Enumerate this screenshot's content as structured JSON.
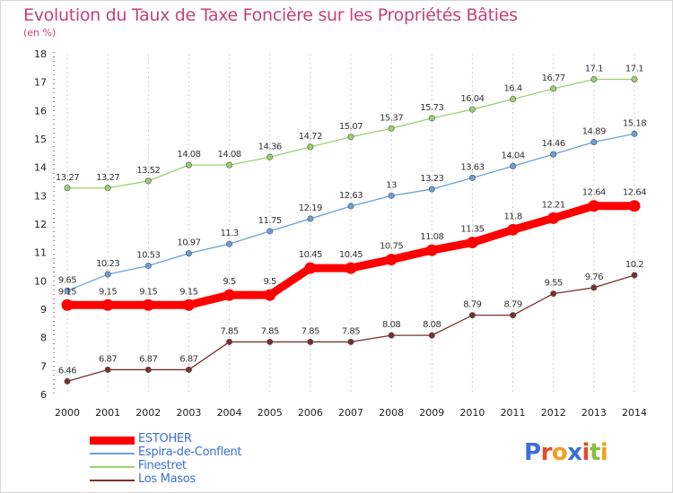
{
  "title": "Evolution du Taux de Taxe Foncière sur les Propriétés Bâties",
  "subtitle": "(en %)",
  "logo": "Proxiti",
  "colors": {
    "title": "#c4407a",
    "legend_text": "#3b6fd6",
    "grid": "#d0d0d0",
    "logo": [
      "#3b6fd6",
      "#e04b2a",
      "#f0a020",
      "#3b6fd6",
      "#e04b2a",
      "#88c040",
      "#f0a020"
    ]
  },
  "chart_data": {
    "type": "line",
    "title": "Evolution du Taux de Taxe Foncière sur les Propriétés Bâties",
    "ylabel": "(en %)",
    "xlabel": "",
    "x": [
      2000,
      2001,
      2002,
      2003,
      2004,
      2005,
      2006,
      2007,
      2008,
      2009,
      2010,
      2011,
      2012,
      2013,
      2014
    ],
    "ylim": [
      6,
      18
    ],
    "yticks": [
      6,
      7,
      8,
      9,
      10,
      11,
      12,
      13,
      14,
      15,
      16,
      17,
      18
    ],
    "grid": "dashed-vertical",
    "legend_position": "bottom-left",
    "series": [
      {
        "name": "ESTOHER",
        "color": "#ff0000",
        "values": [
          9.15,
          9.15,
          9.15,
          9.15,
          9.5,
          9.5,
          10.45,
          10.45,
          10.75,
          11.08,
          11.35,
          11.8,
          12.21,
          12.64,
          12.64
        ],
        "labels": [
          "9.15",
          "9.15",
          "9.15",
          "9.15",
          "9.5",
          "9.5",
          "10.45",
          "10.45",
          "10.75",
          "11.08",
          "11.35",
          "11.8",
          "12.21",
          "12.64",
          "12.64"
        ]
      },
      {
        "name": "Espira-de-Conflent",
        "color": "#6aa0d8",
        "values": [
          9.65,
          10.23,
          10.53,
          10.97,
          11.3,
          11.75,
          12.19,
          12.63,
          13,
          13.23,
          13.63,
          14.04,
          14.46,
          14.89,
          15.18
        ],
        "labels": [
          "9.65",
          "10.23",
          "10.53",
          "10.97",
          "11.3",
          "11.75",
          "12.19",
          "12.63",
          "13",
          "13.23",
          "13.63",
          "14.04",
          "14.46",
          "14.89",
          "15.18"
        ]
      },
      {
        "name": "Finestret",
        "color": "#9cd070",
        "values": [
          13.27,
          13.27,
          13.52,
          14.08,
          14.08,
          14.36,
          14.72,
          15.07,
          15.37,
          15.73,
          16.04,
          16.4,
          16.77,
          17.1,
          17.1
        ],
        "labels": [
          "13.27",
          "13.27",
          "13.52",
          "14.08",
          "14.08",
          "14.36",
          "14.72",
          "15.07",
          "15.37",
          "15.73",
          "16.04",
          "16.4",
          "16.77",
          "17.1",
          "17.1"
        ]
      },
      {
        "name": "Los Masos",
        "color": "#7a3030",
        "values": [
          6.46,
          6.87,
          6.87,
          6.87,
          7.85,
          7.85,
          7.85,
          7.85,
          8.08,
          8.08,
          8.79,
          8.79,
          9.55,
          9.76,
          10.2
        ],
        "labels": [
          "6.46",
          "6.87",
          "6.87",
          "6.87",
          "7.85",
          "7.85",
          "7.85",
          "7.85",
          "8.08",
          "8.08",
          "8.79",
          "8.79",
          "9.55",
          "9.76",
          "10.2"
        ]
      }
    ]
  }
}
